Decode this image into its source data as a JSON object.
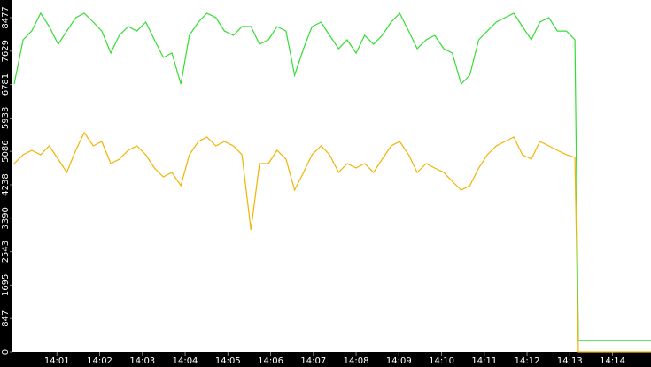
{
  "chart_data": {
    "type": "line",
    "xlim": [
      0,
      14.9
    ],
    "ylim": [
      0,
      8924
    ],
    "yticks": [
      0,
      847,
      1695,
      2543,
      3390,
      4238,
      5086,
      5933,
      6781,
      7629,
      8477
    ],
    "xticks": [
      {
        "value": 1,
        "label": "14:01"
      },
      {
        "value": 2,
        "label": "14:02"
      },
      {
        "value": 3,
        "label": "14:03"
      },
      {
        "value": 4,
        "label": "14:04"
      },
      {
        "value": 5,
        "label": "14:05"
      },
      {
        "value": 6,
        "label": "14:06"
      },
      {
        "value": 7,
        "label": "14:07"
      },
      {
        "value": 8,
        "label": "14:08"
      },
      {
        "value": 9,
        "label": "14:09"
      },
      {
        "value": 10,
        "label": "14:10"
      },
      {
        "value": 11,
        "label": "14:11"
      },
      {
        "value": 12,
        "label": "14:12"
      },
      {
        "value": 13,
        "label": "14:13"
      },
      {
        "value": 14,
        "label": "14:14"
      }
    ],
    "x": [
      0,
      0.21,
      0.41,
      0.62,
      0.82,
      1.03,
      1.23,
      1.44,
      1.64,
      1.85,
      2.05,
      2.26,
      2.46,
      2.67,
      2.87,
      3.08,
      3.28,
      3.49,
      3.69,
      3.9,
      4.1,
      4.31,
      4.51,
      4.72,
      4.92,
      5.13,
      5.33,
      5.54,
      5.74,
      5.95,
      6.15,
      6.36,
      6.56,
      6.77,
      6.97,
      7.18,
      7.38,
      7.59,
      7.79,
      8.0,
      8.2,
      8.41,
      8.61,
      8.82,
      9.02,
      9.23,
      9.43,
      9.64,
      9.84,
      10.05,
      10.25,
      10.46,
      10.66,
      10.87,
      11.07,
      11.28,
      11.48,
      11.69,
      11.89,
      12.1,
      12.3,
      12.51,
      12.71,
      12.92,
      13.12,
      13.2,
      14.9
    ],
    "series": [
      {
        "color": "#33dd33",
        "values": [
          6793,
          7914,
          8138,
          8587,
          8251,
          7802,
          8138,
          8475,
          8587,
          8363,
          8138,
          7578,
          8026,
          8251,
          8138,
          8363,
          7914,
          7466,
          7578,
          6793,
          8026,
          8363,
          8587,
          8475,
          8138,
          8026,
          8251,
          8251,
          7802,
          7914,
          8251,
          8138,
          7017,
          7690,
          8251,
          8363,
          8026,
          7690,
          7914,
          7578,
          8026,
          7802,
          8026,
          8363,
          8587,
          8138,
          7690,
          7914,
          8026,
          7690,
          7578,
          6793,
          7017,
          7914,
          8138,
          8363,
          8475,
          8587,
          8251,
          7914,
          8363,
          8475,
          8138,
          8138,
          7914,
          290,
          290
        ]
      },
      {
        "color": "#f0b400",
        "values": [
          4775,
          5000,
          5112,
          5000,
          5224,
          4888,
          4551,
          5112,
          5560,
          5224,
          5336,
          4775,
          4888,
          5112,
          5224,
          5000,
          4663,
          4439,
          4551,
          4215,
          5000,
          5336,
          5448,
          5224,
          5336,
          5224,
          5000,
          3094,
          4775,
          4775,
          5112,
          4888,
          4103,
          4551,
          5000,
          5224,
          5000,
          4551,
          4775,
          4663,
          4775,
          4551,
          4888,
          5224,
          5336,
          5000,
          4551,
          4775,
          4663,
          4551,
          4327,
          4103,
          4215,
          4663,
          5000,
          5224,
          5336,
          5448,
          5000,
          4888,
          5336,
          5224,
          5112,
          5000,
          4932,
          0,
          0
        ]
      }
    ]
  }
}
